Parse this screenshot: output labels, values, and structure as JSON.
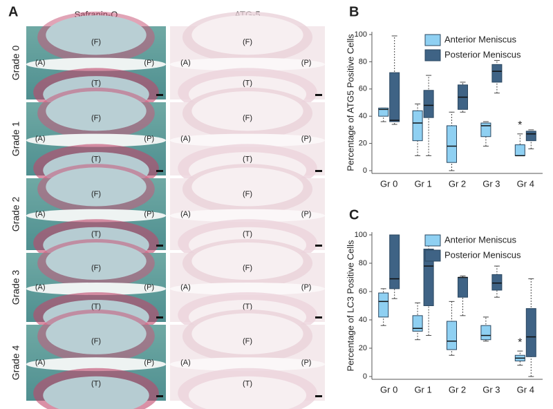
{
  "panel_a": {
    "panel": "A",
    "columns": [
      "Safranin-O",
      "ATG-5"
    ],
    "rows": [
      "Grade 0",
      "Grade 1",
      "Grade 2",
      "Grade 3",
      "Grade 4"
    ],
    "regions": [
      "(F)",
      "(A)",
      "(P)",
      "(T)"
    ]
  },
  "chart_data": [
    {
      "type": "box",
      "panel": "B",
      "y_label": "Percentage of ATG5 Positive Cells",
      "categories": [
        "Gr 0",
        "Gr 1",
        "Gr 2",
        "Gr 3",
        "Gr 4"
      ],
      "ylim": [
        0,
        100
      ],
      "yticks": [
        0,
        20,
        40,
        60,
        80,
        100
      ],
      "grid": false,
      "legend": "upper right",
      "series": [
        {
          "name": "Anterior Meniscus",
          "color": "#8fd0f2",
          "min": [
            36,
            11,
            0,
            18,
            11
          ],
          "q1": [
            40,
            22,
            6,
            25,
            11
          ],
          "median": [
            45,
            35,
            18,
            33,
            11
          ],
          "q3": [
            46,
            44,
            33,
            35,
            19
          ],
          "max": [
            46,
            49,
            43,
            36,
            27
          ]
        },
        {
          "name": "Posterior Meniscus",
          "color": "#3f6385",
          "min": [
            34,
            11,
            43,
            57,
            16
          ],
          "q1": [
            36,
            39,
            45,
            65,
            22
          ],
          "median": [
            37,
            48,
            54,
            73,
            27
          ],
          "q3": [
            72,
            59,
            63,
            78,
            29
          ],
          "max": [
            99,
            70,
            65,
            81,
            30
          ]
        }
      ],
      "annotations": [
        {
          "text": "*",
          "category": "Gr 4"
        }
      ]
    },
    {
      "type": "box",
      "panel": "C",
      "y_label": "Percentage of LC3 Positive Cells",
      "categories": [
        "Gr 0",
        "Gr 1",
        "Gr 2",
        "Gr 3",
        "Gr 4"
      ],
      "ylim": [
        0,
        100
      ],
      "yticks": [
        0,
        20,
        40,
        60,
        80,
        100
      ],
      "grid": false,
      "legend": "upper right",
      "series": [
        {
          "name": "Anterior Meniscus",
          "color": "#8fd0f2",
          "min": [
            36,
            26,
            15,
            25,
            8
          ],
          "q1": [
            42,
            32,
            19,
            26,
            11
          ],
          "median": [
            53,
            34,
            25,
            29,
            13
          ],
          "q3": [
            59,
            43,
            39,
            36,
            15
          ],
          "max": [
            62,
            52,
            53,
            42,
            18
          ]
        },
        {
          "name": "Posterior Meniscus",
          "color": "#3f6385",
          "min": [
            55,
            29,
            43,
            56,
            0
          ],
          "q1": [
            62,
            50,
            56,
            61,
            14
          ],
          "median": [
            69,
            78,
            70,
            66,
            28
          ],
          "q3": [
            100,
            90,
            70,
            72,
            48
          ],
          "max": [
            100,
            95,
            71,
            78,
            69
          ]
        }
      ],
      "annotations": [
        {
          "text": "*",
          "category": "Gr 4"
        }
      ]
    }
  ]
}
